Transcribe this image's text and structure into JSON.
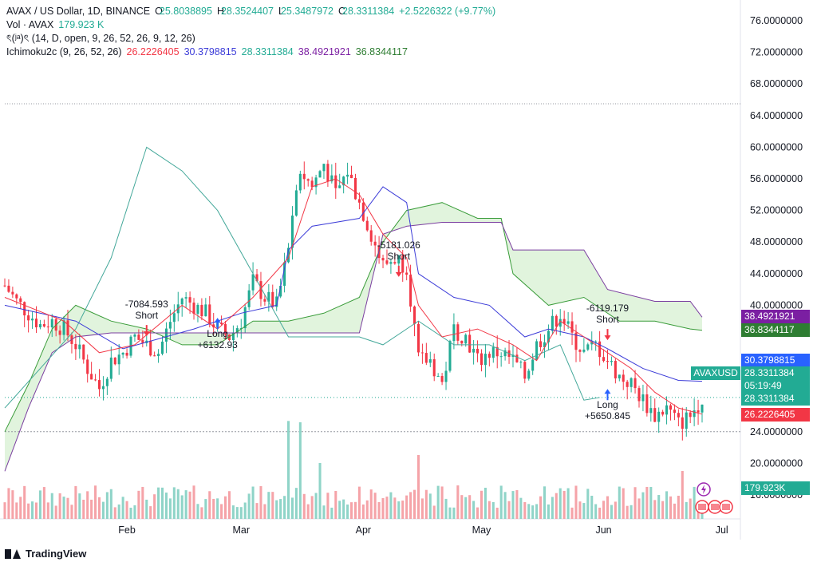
{
  "legend": {
    "symbol": "AVAX / US Dollar, 1D, BINANCE",
    "o_label": "O",
    "o_value": "25.8038895",
    "h_label": "H",
    "h_value": "28.3524407",
    "l_label": "L",
    "l_value": "25.3487972",
    "c_label": "C",
    "c_value": "28.3311384",
    "change": "+2.5226322 (+9.77%)",
    "vol_label": "Vol · AVAX",
    "vol_value": "179.923 K",
    "strategy_label": "ৎ(ʲᵃ)ৎ (14, D, open, 9, 26, 52, 26, 9, 12, 26)",
    "ichimoku_label": "Ichimoku2c (9, 26, 52, 26)",
    "ichimoku_values": [
      "26.2226405",
      "30.3798815",
      "28.3311384",
      "38.4921921",
      "36.8344117"
    ]
  },
  "colors": {
    "up": "#22ab94",
    "down": "#f23645",
    "tenkan": "#f23645",
    "kijun": "#3c3cd8",
    "lagging": "#44a89a",
    "span_a": "#3a9c3a",
    "span_b": "#7b3fa0",
    "cloud": "#d7f0d2",
    "vol_up": "#8fd4c8",
    "vol_down": "#f5a3a8"
  },
  "price_tags": [
    {
      "value": "38.4921921",
      "color": "#7b1fa2"
    },
    {
      "value": "36.8344117",
      "color": "#2e7d32"
    },
    {
      "value": "30.3798815",
      "color": "#2962ff"
    },
    {
      "value": "28.3311384",
      "color": "#22ab94"
    },
    {
      "value": "05:19:49",
      "color": "#22ab94"
    },
    {
      "value": "28.3311384",
      "color": "#22ab94"
    },
    {
      "value": "26.2226405",
      "color": "#f23645"
    }
  ],
  "ticker_tag": "AVAXUSD",
  "vol_tag": "179.923K",
  "brand": "TradingView",
  "chart_data": {
    "type": "candlestick",
    "ylim": [
      16,
      78
    ],
    "yticks": [
      "76.0000000",
      "72.0000000",
      "68.0000000",
      "64.0000000",
      "60.0000000",
      "56.0000000",
      "52.0000000",
      "48.0000000",
      "44.0000000",
      "40.0000000",
      "24.0000000",
      "20.0000000",
      "16.0000000"
    ],
    "xticks": [
      {
        "label": "Feb",
        "day": 31
      },
      {
        "label": "Mar",
        "day": 60
      },
      {
        "label": "Apr",
        "day": 91
      },
      {
        "label": "May",
        "day": 121
      },
      {
        "label": "Jun",
        "day": 152
      },
      {
        "label": "Jul",
        "day": 182
      }
    ],
    "first_day": 0,
    "last_day": 177,
    "close_path": [
      [
        0,
        42.5
      ],
      [
        3,
        40.5
      ],
      [
        6,
        39
      ],
      [
        9,
        37.5
      ],
      [
        12,
        38
      ],
      [
        15,
        37
      ],
      [
        18,
        35
      ],
      [
        21,
        32
      ],
      [
        24,
        29.5
      ],
      [
        27,
        33
      ],
      [
        30,
        34
      ],
      [
        33,
        36
      ],
      [
        36,
        35
      ],
      [
        39,
        34
      ],
      [
        42,
        38
      ],
      [
        45,
        41
      ],
      [
        48,
        40
      ],
      [
        51,
        39
      ],
      [
        54,
        37
      ],
      [
        57,
        36
      ],
      [
        60,
        38
      ],
      [
        63,
        43
      ],
      [
        66,
        41
      ],
      [
        69,
        40
      ],
      [
        72,
        47
      ],
      [
        75,
        57
      ],
      [
        78,
        55
      ],
      [
        81,
        58
      ],
      [
        84,
        54
      ],
      [
        87,
        57
      ],
      [
        90,
        53
      ],
      [
        93,
        49
      ],
      [
        96,
        45
      ],
      [
        99,
        46
      ],
      [
        102,
        45
      ],
      [
        105,
        33
      ],
      [
        108,
        33
      ],
      [
        111,
        30
      ],
      [
        114,
        37
      ],
      [
        117,
        36
      ],
      [
        120,
        33
      ],
      [
        123,
        34
      ],
      [
        126,
        34
      ],
      [
        129,
        33
      ],
      [
        132,
        31
      ],
      [
        135,
        35
      ],
      [
        138,
        37
      ],
      [
        141,
        39
      ],
      [
        144,
        36
      ],
      [
        147,
        34
      ],
      [
        150,
        35
      ],
      [
        153,
        33
      ],
      [
        156,
        31
      ],
      [
        159,
        30
      ],
      [
        162,
        28
      ],
      [
        165,
        26
      ],
      [
        168,
        27
      ],
      [
        171,
        25
      ],
      [
        174,
        26
      ],
      [
        177,
        28.33
      ]
    ],
    "tenkan": [
      [
        0,
        41
      ],
      [
        15,
        38
      ],
      [
        24,
        34
      ],
      [
        33,
        35
      ],
      [
        45,
        40
      ],
      [
        54,
        37
      ],
      [
        63,
        41
      ],
      [
        72,
        46
      ],
      [
        78,
        55
      ],
      [
        84,
        56
      ],
      [
        90,
        54
      ],
      [
        96,
        49
      ],
      [
        102,
        46
      ],
      [
        105,
        40
      ],
      [
        111,
        36
      ],
      [
        120,
        37
      ],
      [
        129,
        35
      ],
      [
        135,
        33
      ],
      [
        141,
        38
      ],
      [
        147,
        36
      ],
      [
        153,
        34
      ],
      [
        159,
        32
      ],
      [
        165,
        29
      ],
      [
        171,
        27
      ],
      [
        177,
        26.22
      ]
    ],
    "kijun": [
      [
        0,
        40
      ],
      [
        18,
        38
      ],
      [
        30,
        34.5
      ],
      [
        48,
        37
      ],
      [
        60,
        39
      ],
      [
        69,
        40
      ],
      [
        72,
        47
      ],
      [
        78,
        50
      ],
      [
        90,
        51
      ],
      [
        96,
        55
      ],
      [
        102,
        53
      ],
      [
        105,
        44
      ],
      [
        114,
        41
      ],
      [
        123,
        40
      ],
      [
        132,
        36
      ],
      [
        138,
        37
      ],
      [
        147,
        36
      ],
      [
        153,
        34.5
      ],
      [
        162,
        32
      ],
      [
        171,
        30.5
      ],
      [
        177,
        30.38
      ]
    ],
    "lagging": [
      [
        0,
        27
      ],
      [
        9,
        32
      ],
      [
        18,
        37
      ],
      [
        27,
        46
      ],
      [
        36,
        60
      ],
      [
        45,
        57
      ],
      [
        54,
        52
      ],
      [
        63,
        44
      ],
      [
        72,
        36
      ],
      [
        81,
        36
      ],
      [
        90,
        36
      ],
      [
        96,
        35
      ],
      [
        105,
        38
      ],
      [
        114,
        35
      ],
      [
        123,
        35
      ],
      [
        132,
        33
      ],
      [
        141,
        35
      ],
      [
        147,
        28
      ],
      [
        151,
        28.33
      ]
    ],
    "span_a": [
      [
        0,
        24
      ],
      [
        6,
        30
      ],
      [
        12,
        37
      ],
      [
        18,
        40
      ],
      [
        27,
        38
      ],
      [
        36,
        37
      ],
      [
        45,
        35
      ],
      [
        54,
        35
      ],
      [
        63,
        38
      ],
      [
        72,
        38
      ],
      [
        81,
        39
      ],
      [
        90,
        41
      ],
      [
        96,
        48
      ],
      [
        102,
        52
      ],
      [
        111,
        53
      ],
      [
        120,
        51
      ],
      [
        126,
        51
      ],
      [
        129,
        44
      ],
      [
        138,
        40
      ],
      [
        147,
        41
      ],
      [
        156,
        38
      ],
      [
        165,
        38
      ],
      [
        174,
        37
      ],
      [
        177,
        36.83
      ]
    ],
    "span_b": [
      [
        0,
        19
      ],
      [
        6,
        27
      ],
      [
        12,
        34
      ],
      [
        18,
        36
      ],
      [
        27,
        36.5
      ],
      [
        36,
        36.5
      ],
      [
        45,
        36.5
      ],
      [
        54,
        36.5
      ],
      [
        63,
        36.5
      ],
      [
        72,
        36.5
      ],
      [
        81,
        36.5
      ],
      [
        90,
        36.5
      ],
      [
        96,
        49
      ],
      [
        102,
        50
      ],
      [
        111,
        50.5
      ],
      [
        120,
        50.5
      ],
      [
        126,
        50.5
      ],
      [
        129,
        47
      ],
      [
        138,
        47
      ],
      [
        147,
        47
      ],
      [
        153,
        42
      ],
      [
        165,
        40.5
      ],
      [
        174,
        40.5
      ],
      [
        177,
        38.49
      ]
    ],
    "signals": [
      {
        "day": 36,
        "price": 37.5,
        "label": "-7084.593",
        "side": "Short"
      },
      {
        "day": 54,
        "price": 37,
        "label": "Long",
        "value": "+6132.93"
      },
      {
        "day": 100,
        "price": 45,
        "label": "-5181.026",
        "side": "Short"
      },
      {
        "day": 153,
        "price": 37,
        "label": "-6119.179",
        "side": "Short"
      },
      {
        "day": 153,
        "price": 28,
        "label": "Long",
        "value": "+5650.845"
      }
    ],
    "max_line": 65.5,
    "min_line": 24.0
  }
}
